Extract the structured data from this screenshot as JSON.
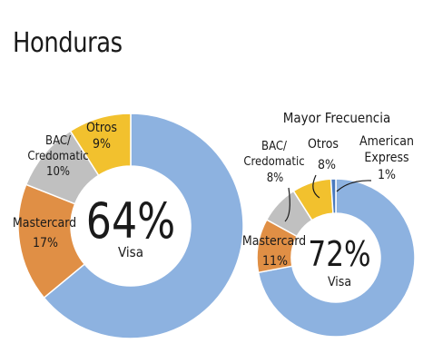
{
  "header": {
    "title": "Honduras"
  },
  "chart_data": [
    {
      "type": "pie",
      "variant": "donut",
      "center": {
        "percent": "64%",
        "label": "Visa"
      },
      "slices": [
        {
          "name": "Visa",
          "value": 64,
          "color": "#8DB2E0",
          "label_text": ""
        },
        {
          "name": "Mastercard",
          "value": 17,
          "color": "#E08F45",
          "label_text": "Mastercard",
          "value_text": "17%"
        },
        {
          "name": "BAC/Credomatic",
          "value": 10,
          "color": "#C0C0C0",
          "label_text": "BAC/ Credomatic",
          "value_text": "10%"
        },
        {
          "name": "Otros",
          "value": 9,
          "color": "#F2C12E",
          "label_text": "Otros",
          "value_text": "9%"
        }
      ]
    },
    {
      "type": "pie",
      "variant": "donut",
      "title": "Mayor Frecuencia",
      "center": {
        "percent": "72%",
        "label": "Visa"
      },
      "slices": [
        {
          "name": "Visa",
          "value": 72,
          "color": "#8DB2E0",
          "label_text": ""
        },
        {
          "name": "Mastercard",
          "value": 11,
          "color": "#E08F45",
          "label_text": "Mastercard",
          "value_text": "11%"
        },
        {
          "name": "BAC/Credomatic",
          "value": 8,
          "color": "#C0C0C0",
          "label_text": "BAC/ Credomatic",
          "value_text": "8%"
        },
        {
          "name": "Otros",
          "value": 8,
          "color": "#F2C12E",
          "label_text": "Otros",
          "value_text": "8%"
        },
        {
          "name": "American Express",
          "value": 1,
          "color": "#4B7BBF",
          "label_text": "American Express",
          "value_text": "1%"
        }
      ]
    }
  ]
}
